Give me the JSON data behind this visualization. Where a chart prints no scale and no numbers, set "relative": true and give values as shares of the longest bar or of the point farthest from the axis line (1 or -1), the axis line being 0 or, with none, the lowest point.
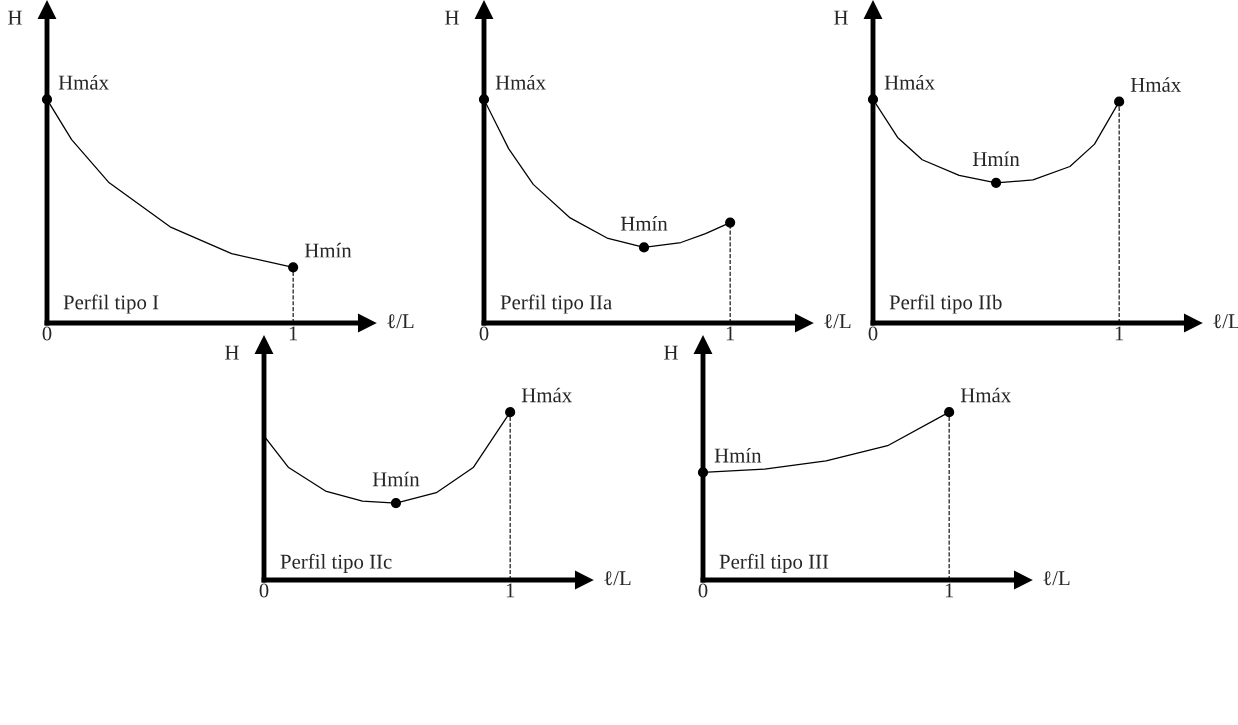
{
  "chart_data": [
    {
      "type": "line",
      "relative": true,
      "xlabel": "ℓ/L",
      "ylabel": "H",
      "xlim": [
        0,
        1.3
      ],
      "xticks": [
        0,
        1
      ],
      "tick_labels": "x",
      "grid": false,
      "series": [
        {
          "type": "line",
          "color": "#000000",
          "marker": "none",
          "x": [
            0,
            0.1,
            0.25,
            0.5,
            0.75,
            1
          ],
          "values": [
            1,
            0.82,
            0.63,
            0.43,
            0.31,
            0.249
          ]
        },
        {
          "type": "scatter",
          "color": "#000000",
          "marker": "circle",
          "x": [
            0,
            1
          ],
          "values": [
            1,
            0.249
          ]
        }
      ],
      "ref_lines": [
        {
          "axis": "x",
          "value": 1,
          "line_style": "dashed",
          "color": "#000000"
        }
      ],
      "annotations": [
        {
          "text": "Hmáx",
          "x": 0,
          "y": 1
        },
        {
          "text": "Hmín",
          "x": 1,
          "y": 0.249
        },
        "Perfil tipo I"
      ]
    },
    {
      "type": "line",
      "relative": true,
      "xlabel": "ℓ/L",
      "ylabel": "H",
      "xlim": [
        0,
        1.3
      ],
      "xticks": [
        0,
        1
      ],
      "tick_labels": "x",
      "grid": false,
      "series": [
        {
          "type": "line",
          "color": "#000000",
          "marker": "none",
          "x": [
            0,
            0.1,
            0.2,
            0.35,
            0.5,
            0.65,
            0.8,
            0.9,
            1
          ],
          "values": [
            1,
            0.78,
            0.62,
            0.47,
            0.38,
            0.338,
            0.36,
            0.4,
            0.449
          ]
        },
        {
          "type": "scatter",
          "color": "#000000",
          "marker": "circle",
          "x": [
            0,
            0.65,
            1
          ],
          "values": [
            1,
            0.338,
            0.449
          ]
        }
      ],
      "ref_lines": [
        {
          "axis": "x",
          "value": 1,
          "line_style": "dashed",
          "color": "#000000"
        }
      ],
      "annotations": [
        {
          "text": "Hmáx",
          "x": 0,
          "y": 1
        },
        {
          "text": "Hmín",
          "x": 0.65,
          "y": 0.338
        },
        "Perfil tipo IIa"
      ]
    },
    {
      "type": "line",
      "relative": true,
      "xlabel": "ℓ/L",
      "ylabel": "H",
      "xlim": [
        0,
        1.3
      ],
      "xticks": [
        0,
        1
      ],
      "tick_labels": "x",
      "grid": false,
      "series": [
        {
          "type": "line",
          "color": "#000000",
          "marker": "none",
          "x": [
            0,
            0.1,
            0.2,
            0.35,
            0.5,
            0.65,
            0.8,
            0.9,
            1
          ],
          "values": [
            1,
            0.83,
            0.73,
            0.66,
            0.627,
            0.64,
            0.7,
            0.8,
            0.99
          ]
        },
        {
          "type": "scatter",
          "color": "#000000",
          "marker": "circle",
          "x": [
            0,
            0.5,
            1
          ],
          "values": [
            1,
            0.627,
            0.99
          ]
        }
      ],
      "ref_lines": [
        {
          "axis": "x",
          "value": 1,
          "line_style": "dashed",
          "color": "#000000"
        }
      ],
      "annotations": [
        {
          "text": "Hmáx",
          "x": 0,
          "y": 1
        },
        {
          "text": "Hmín",
          "x": 0.5,
          "y": 0.627
        },
        {
          "text": "Hmáx",
          "x": 1,
          "y": 0.99
        },
        "Perfil tipo IIb"
      ]
    },
    {
      "type": "line",
      "relative": true,
      "xlabel": "ℓ/L",
      "ylabel": "H",
      "xlim": [
        0,
        1.3
      ],
      "xticks": [
        0,
        1
      ],
      "tick_labels": "x",
      "grid": false,
      "series": [
        {
          "type": "line",
          "color": "#000000",
          "marker": "none",
          "x": [
            0,
            0.1,
            0.25,
            0.4,
            0.536,
            0.7,
            0.85,
            1
          ],
          "values": [
            0.858,
            0.67,
            0.53,
            0.47,
            0.458,
            0.52,
            0.67,
            1
          ]
        },
        {
          "type": "scatter",
          "color": "#000000",
          "marker": "circle",
          "x": [
            0.536,
            1
          ],
          "values": [
            0.458,
            1
          ]
        }
      ],
      "ref_lines": [
        {
          "axis": "x",
          "value": 1,
          "line_style": "dashed",
          "color": "#000000"
        }
      ],
      "annotations": [
        {
          "text": "Hmín",
          "x": 0.536,
          "y": 0.458
        },
        {
          "text": "Hmáx",
          "x": 1,
          "y": 1
        },
        "Perfil tipo IIc"
      ]
    },
    {
      "type": "line",
      "relative": true,
      "xlabel": "ℓ/L",
      "ylabel": "H",
      "xlim": [
        0,
        1.3
      ],
      "xticks": [
        0,
        1
      ],
      "tick_labels": "x",
      "grid": false,
      "series": [
        {
          "type": "line",
          "color": "#000000",
          "marker": "none",
          "x": [
            0,
            0.25,
            0.5,
            0.75,
            1
          ],
          "values": [
            0.641,
            0.66,
            0.71,
            0.8,
            1
          ]
        },
        {
          "type": "scatter",
          "color": "#000000",
          "marker": "circle",
          "x": [
            0,
            1
          ],
          "values": [
            0.641,
            1
          ]
        }
      ],
      "ref_lines": [
        {
          "axis": "x",
          "value": 1,
          "line_style": "dashed",
          "color": "#000000"
        }
      ],
      "annotations": [
        {
          "text": "Hmín",
          "x": 0,
          "y": 0.641
        },
        {
          "text": "Hmáx",
          "x": 1,
          "y": 1
        },
        "Perfil tipo III"
      ]
    }
  ]
}
